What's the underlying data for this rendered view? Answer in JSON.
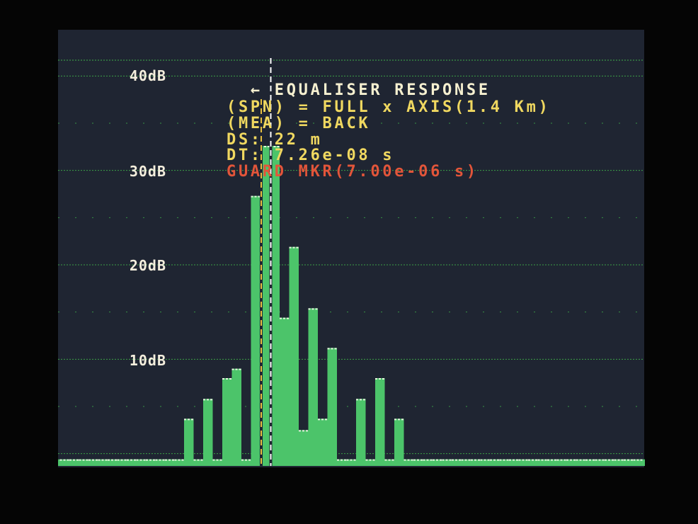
{
  "chart_data": {
    "type": "bar",
    "title": "EQUALISER RESPONSE",
    "title_prefix_icon": "left-arrow-icon",
    "y_tick_labels": [
      "40dB",
      "30dB",
      "20dB",
      "10dB"
    ],
    "y_ticks": [
      40,
      30,
      20,
      10
    ],
    "ylim": [
      -1.3,
      44.9
    ],
    "grid": true,
    "values": [
      -0.6,
      -0.6,
      -0.6,
      -0.6,
      -0.6,
      -0.6,
      -0.6,
      -0.6,
      -0.6,
      -0.6,
      -0.6,
      -0.6,
      -0.6,
      3.7,
      -0.6,
      5.8,
      -0.6,
      8.0,
      9.0,
      -0.6,
      27.3,
      32.6,
      32.6,
      14.4,
      21.9,
      2.5,
      15.4,
      3.7,
      11.2,
      -0.6,
      -0.6,
      5.8,
      -0.6,
      8.0,
      -0.6,
      3.7,
      -0.6,
      -0.6,
      -0.6,
      -0.6,
      -0.6,
      -0.6,
      -0.6,
      -0.6,
      -0.6,
      -0.6,
      -0.6,
      -0.6,
      -0.6,
      -0.6,
      -0.6,
      -0.6,
      -0.6,
      -0.6,
      -0.6,
      -0.6,
      -0.6,
      -0.6,
      -0.6,
      -0.6,
      -0.6
    ],
    "markers": [
      {
        "name": "guard-marker",
        "color": "#e8c040",
        "bin": 21.0
      },
      {
        "name": "cursor-marker",
        "color": "#ffffff",
        "bin": 22.0
      }
    ],
    "bar_color": "#4cc46a",
    "grid_color": "#3fae4a"
  },
  "info": {
    "spn_line": "(SPN) = FULL x AXIS(1.4 Km)",
    "mea_line": "(MEA) = BACK",
    "ds_line": "DS: 22 m",
    "dt_line": "DT: 7.26e-08 s",
    "guard_line": "GUARD MKR(7.00e-06 s)"
  },
  "colors": {
    "text_yellow": "#f0d860",
    "text_red": "#e2553a",
    "background": "#1f2532"
  }
}
